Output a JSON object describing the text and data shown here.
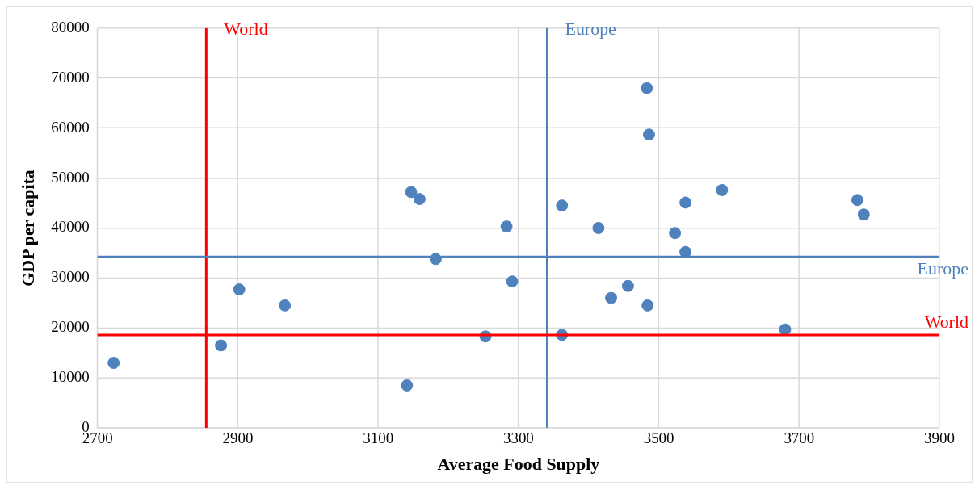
{
  "chart_data": {
    "type": "scatter",
    "xlabel": "Average Food Supply",
    "ylabel": "GDP per capita",
    "x": [
      2723,
      2876,
      2902,
      2967,
      3141,
      3147,
      3159,
      3182,
      3253,
      3283,
      3291,
      3362,
      3362,
      3414,
      3432,
      3456,
      3483,
      3484,
      3486,
      3523,
      3538,
      3538,
      3590,
      3680,
      3783,
      3792
    ],
    "values": [
      13000,
      16500,
      27700,
      24500,
      8500,
      47200,
      45800,
      33800,
      18300,
      40300,
      29300,
      18600,
      44500,
      40000,
      26000,
      28400,
      68000,
      24500,
      58700,
      39000,
      45100,
      35200,
      47600,
      19700,
      45600,
      42700
    ],
    "color": "#4f81bd",
    "marker": "circle",
    "xlim": [
      2700,
      3900
    ],
    "xticks": [
      2700,
      2900,
      3100,
      3300,
      3500,
      3700,
      3900
    ],
    "ylim": [
      0,
      80000
    ],
    "yticks": [
      0,
      10000,
      20000,
      30000,
      40000,
      50000,
      60000,
      70000,
      80000
    ],
    "grid": true,
    "legend": false,
    "ref_lines": [
      {
        "axis": "x",
        "value": 2855,
        "label": "World",
        "color": "#ff0000"
      },
      {
        "axis": "x",
        "value": 3341,
        "label": "Europe",
        "color": "#4f81bd"
      },
      {
        "axis": "y",
        "value": 34200,
        "label": "Europe",
        "color": "#4f81bd"
      },
      {
        "axis": "y",
        "value": 18600,
        "label": "World",
        "color": "#ff0000"
      }
    ]
  }
}
